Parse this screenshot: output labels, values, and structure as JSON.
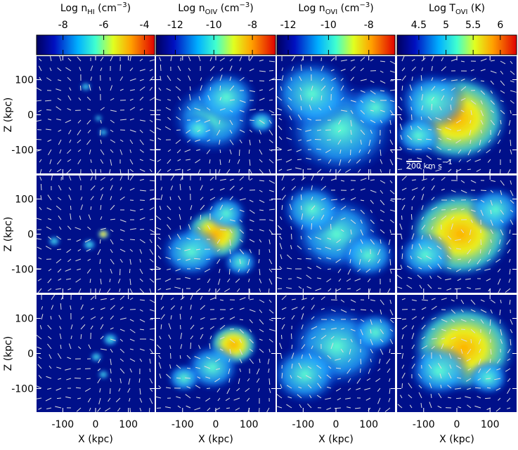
{
  "colorbars": [
    {
      "title": [
        {
          "text": "Log n"
        },
        {
          "text": "HI",
          "style": "sub"
        },
        {
          "text": " (cm"
        },
        {
          "text": "−3",
          "style": "sup"
        },
        {
          "text": ")"
        }
      ],
      "lim": [
        -9.3,
        -3.5
      ],
      "ticks": [
        -8,
        -6,
        -4
      ]
    },
    {
      "title": [
        {
          "text": "Log n"
        },
        {
          "text": "OIV",
          "style": "sub"
        },
        {
          "text": " (cm"
        },
        {
          "text": "−3",
          "style": "sup"
        },
        {
          "text": ")"
        }
      ],
      "lim": [
        -13,
        -6.8
      ],
      "ticks": [
        -12,
        -10,
        -8
      ]
    },
    {
      "title": [
        {
          "text": "Log n"
        },
        {
          "text": "OVI",
          "style": "sub"
        },
        {
          "text": " (cm"
        },
        {
          "text": "−3",
          "style": "sup"
        },
        {
          "text": ")"
        }
      ],
      "lim": [
        -12.56,
        -6.7
      ],
      "ticks": [
        -12,
        -10,
        -8
      ]
    },
    {
      "title": [
        {
          "text": "Log T"
        },
        {
          "text": "OVI",
          "style": "sub"
        },
        {
          "text": " (K)"
        }
      ],
      "lim": [
        4.1,
        6.3
      ],
      "ticks": [
        4.5,
        5,
        5.5,
        6
      ]
    }
  ],
  "panels": {
    "xlabel": "X (kpc)",
    "ylabel": "Z (kpc)",
    "xlim": [
      -180,
      180
    ],
    "ylim": [
      -167,
      167
    ],
    "xticks": [
      -100,
      0,
      100
    ],
    "yticks": [
      100,
      0,
      -100
    ]
  },
  "annotation": [
    {
      "text": "200"
    },
    {
      "text": " km s"
    },
    {
      "text": "−1",
      "style": "sup"
    }
  ]
}
